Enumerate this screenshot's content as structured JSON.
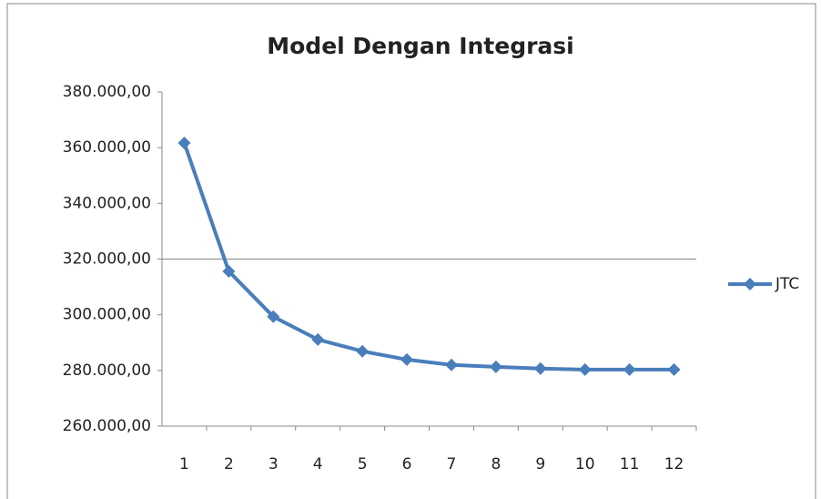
{
  "chart_data": {
    "type": "line",
    "title": "Model Dengan Integrasi",
    "categories": [
      "1",
      "2",
      "3",
      "4",
      "5",
      "6",
      "7",
      "8",
      "9",
      "10",
      "11",
      "12"
    ],
    "series": [
      {
        "name": "JTC",
        "color": "#4a7ebb",
        "values": [
          361700,
          315600,
          299300,
          291100,
          286900,
          283900,
          282000,
          281300,
          280700,
          280300,
          280300,
          280300
        ]
      }
    ],
    "ylim": [
      260000,
      380000
    ],
    "yticks": [
      {
        "value": 260000,
        "label": "260.000,00"
      },
      {
        "value": 280000,
        "label": "280.000,00"
      },
      {
        "value": 300000,
        "label": "300.000,00"
      },
      {
        "value": 320000,
        "label": "320.000,00"
      },
      {
        "value": 340000,
        "label": "340.000,00"
      },
      {
        "value": 360000,
        "label": "360.000,00"
      },
      {
        "value": 380000,
        "label": "380.000,00"
      }
    ],
    "reference_line": 320000,
    "grid": false,
    "legend": "right"
  }
}
